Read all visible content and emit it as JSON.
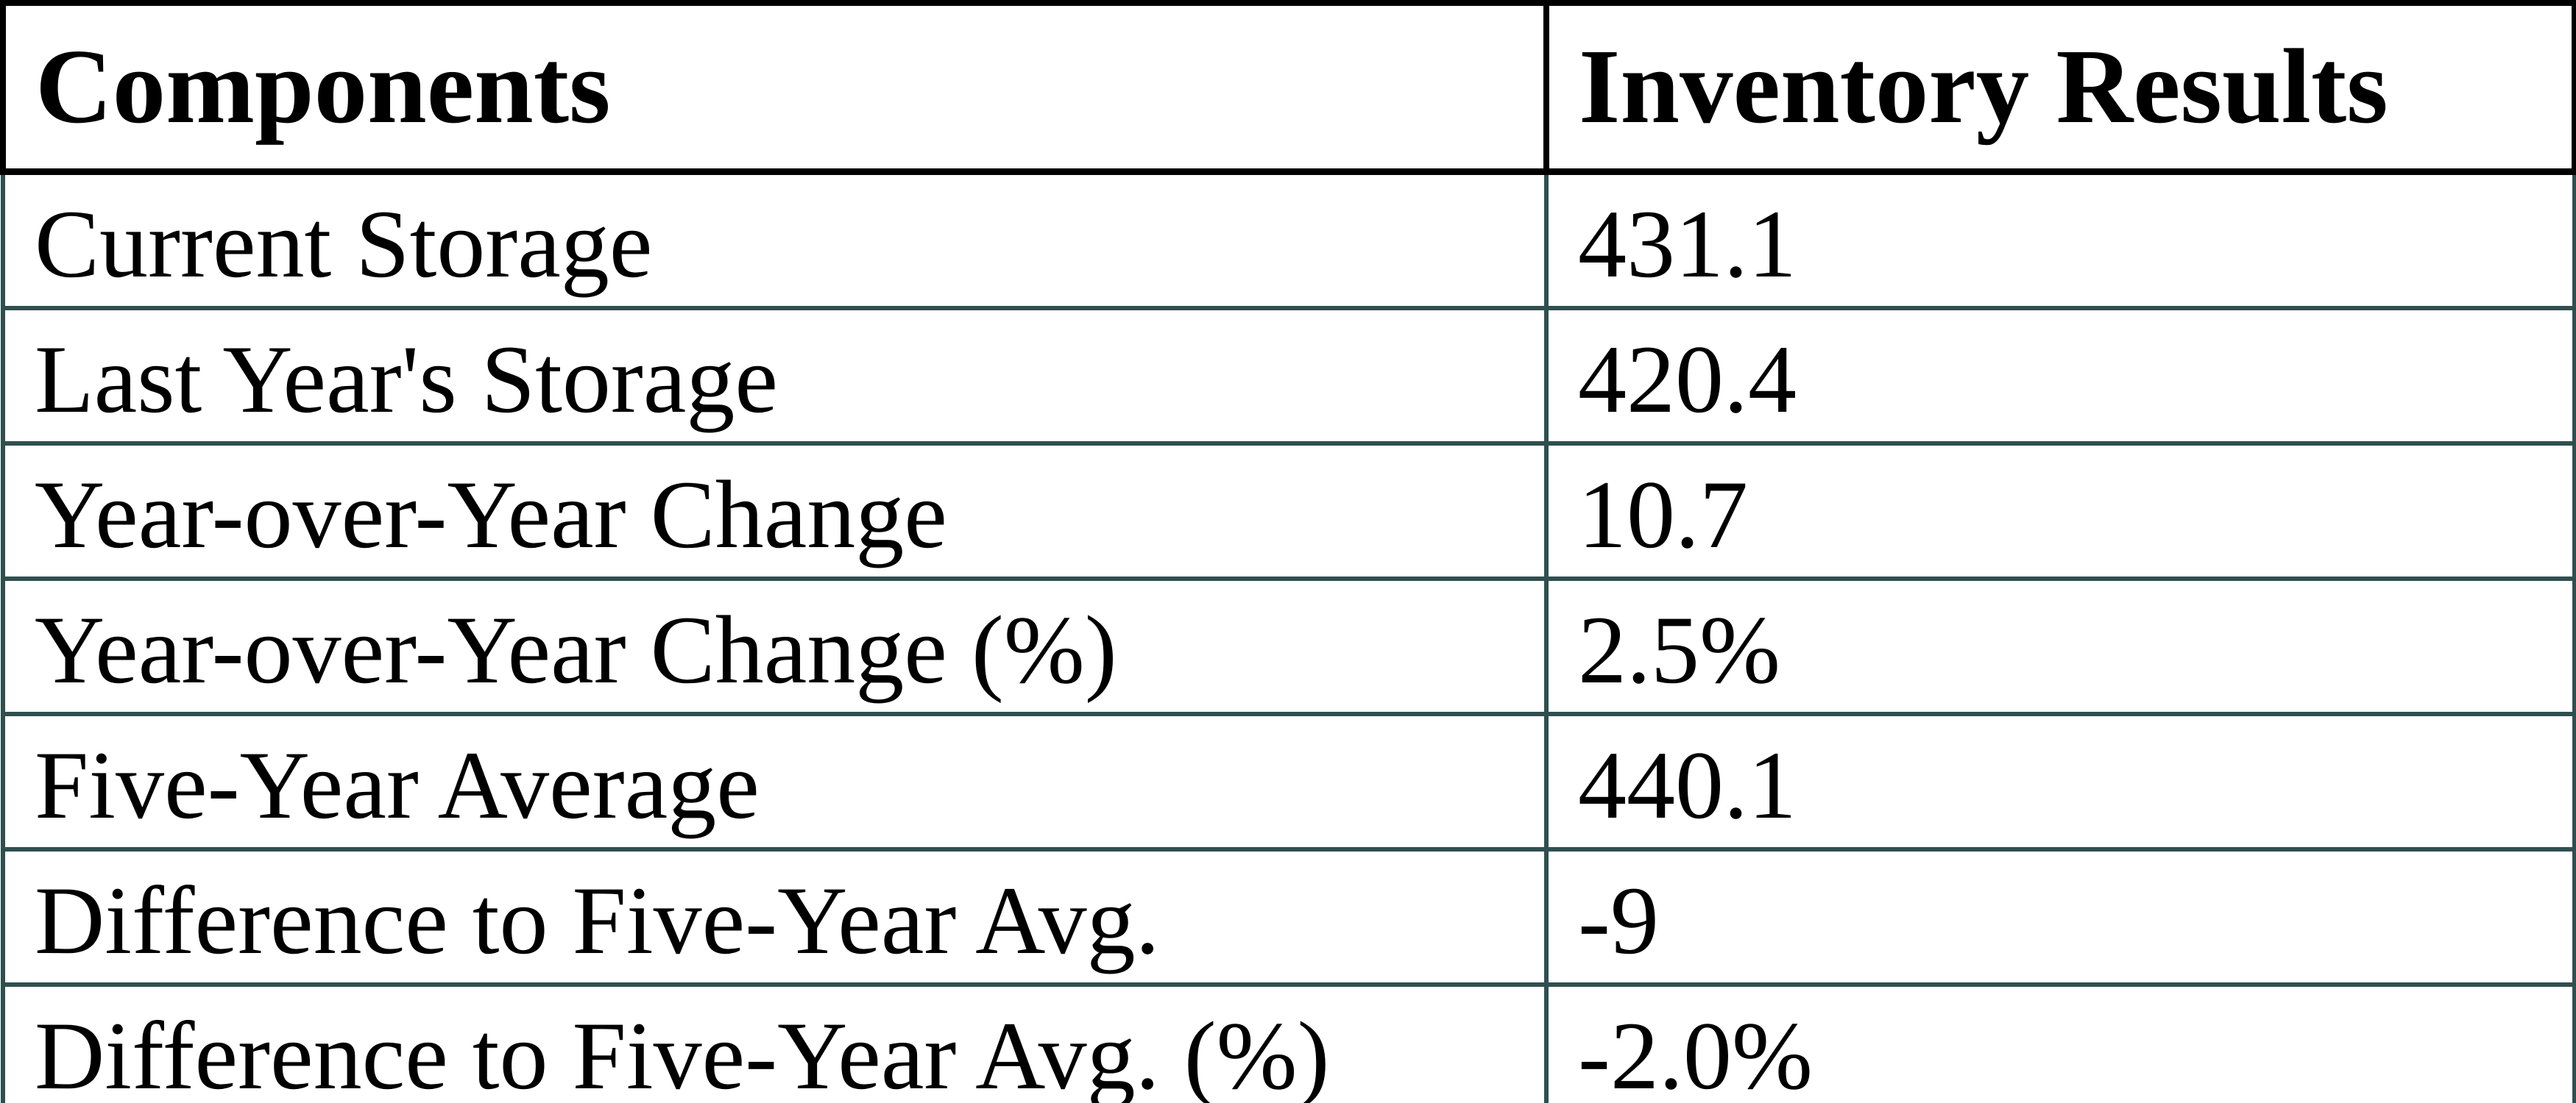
{
  "chart_data": {
    "type": "table",
    "title": "",
    "columns": [
      "Components",
      "Inventory Results"
    ],
    "rows": [
      {
        "label": "Current Storage",
        "value": "431.1"
      },
      {
        "label": "Last Year's Storage",
        "value": "420.4"
      },
      {
        "label": "Year-over-Year Change",
        "value": "10.7"
      },
      {
        "label": "Year-over-Year Change (%)",
        "value": "2.5%"
      },
      {
        "label": "Five-Year Average",
        "value": "440.1"
      },
      {
        "label": "Difference to Five-Year Avg.",
        "value": "-9"
      },
      {
        "label": "Difference to Five-Year Avg. (%)",
        "value": "-2.0%"
      }
    ],
    "layout": {
      "header_border_color": "#000000",
      "body_border_color": "#2F4F4F",
      "text_color": "#000000",
      "background_color": "#FFFFFF"
    }
  }
}
